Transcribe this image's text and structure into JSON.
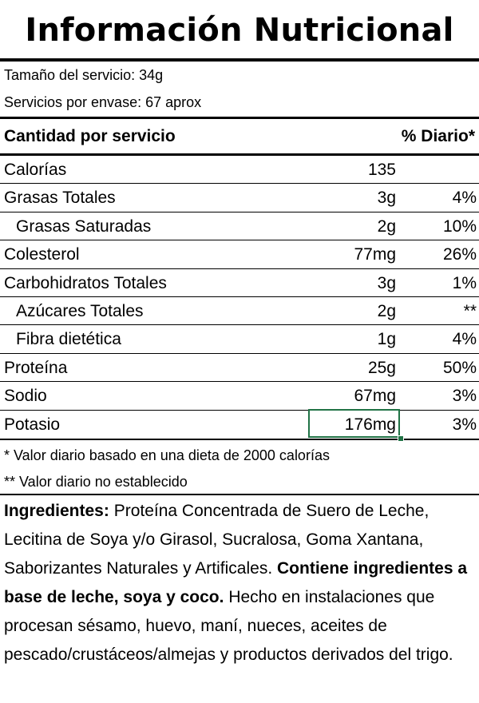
{
  "title": "Información Nutricional",
  "serving": {
    "size": "Tamaño del servicio: 34g",
    "per_container": "Servicios por envase: 67 aprox"
  },
  "header": {
    "left": "Cantidad por servicio",
    "right": "% Diario*"
  },
  "rows": [
    {
      "name": "Calorías",
      "amount": "135",
      "dv": ""
    },
    {
      "name": "Grasas Totales",
      "amount": "3g",
      "dv": "4%"
    },
    {
      "name": "Grasas Saturadas",
      "amount": "2g",
      "dv": "10%"
    },
    {
      "name": "Colesterol",
      "amount": "77mg",
      "dv": "26%"
    },
    {
      "name": "Carbohidratos Totales",
      "amount": "3g",
      "dv": "1%"
    },
    {
      "name": "Azúcares Totales",
      "amount": "2g",
      "dv": "**"
    },
    {
      "name": "Fibra dietética",
      "amount": "1g",
      "dv": "4%"
    },
    {
      "name": "Proteína",
      "amount": "25g",
      "dv": "50%"
    },
    {
      "name": "Sodio",
      "amount": "67mg",
      "dv": "3%"
    },
    {
      "name": "Potasio",
      "amount": "176mg",
      "dv": "3%"
    }
  ],
  "footnotes": {
    "dv_note": "* Valor diario basado en una dieta de 2000 calorías",
    "not_established": "** Valor diario no establecido"
  },
  "ingredients": {
    "label": "Ingredientes:",
    "list": " Proteína Concentrada de Suero de Leche, Lecitina de Soya y/o Girasol, Sucralosa, Goma Xantana, Saborizantes Naturales y Artificales. ",
    "allergen": "Contiene ingredientes a base de leche, soya y coco.",
    "facility": " Hecho en instalaciones que procesan sésamo, huevo, maní, nueces, aceites de pescado/crustáceos/almejas y productos derivados del trigo."
  }
}
